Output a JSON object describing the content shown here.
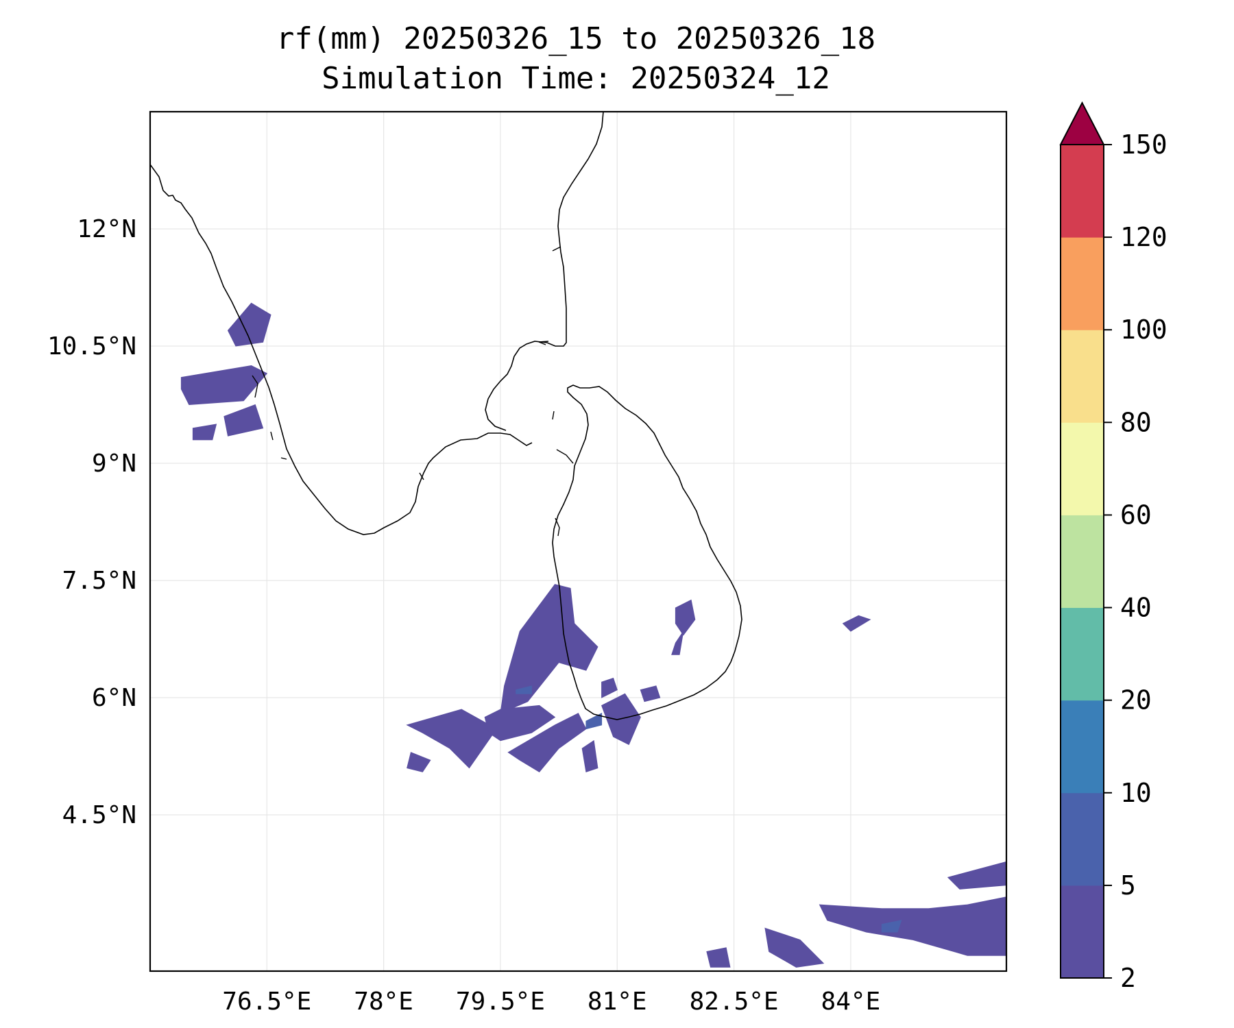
{
  "title": {
    "line1": "rf(mm) 20250326_15 to 20250326_18",
    "line2": "Simulation Time: 20250324_12"
  },
  "map": {
    "lon_range": [
      75.0,
      86.0
    ],
    "lat_range": [
      2.5,
      13.5
    ],
    "lon_ticks": [
      {
        "value": 76.5,
        "label": "76.5°E"
      },
      {
        "value": 78.0,
        "label": "78°E"
      },
      {
        "value": 79.5,
        "label": "79.5°E"
      },
      {
        "value": 81.0,
        "label": "81°E"
      },
      {
        "value": 82.5,
        "label": "82.5°E"
      },
      {
        "value": 84.0,
        "label": "84°E"
      }
    ],
    "lat_ticks": [
      {
        "value": 12.0,
        "label": "12°N"
      },
      {
        "value": 10.5,
        "label": "10.5°N"
      },
      {
        "value": 9.0,
        "label": "9°N"
      },
      {
        "value": 7.5,
        "label": "7.5°N"
      },
      {
        "value": 6.0,
        "label": "6°N"
      },
      {
        "value": 4.5,
        "label": "4.5°N"
      }
    ],
    "grid": true,
    "coastline_color": "#000000"
  },
  "colorbar": {
    "levels": [
      2,
      5,
      10,
      20,
      40,
      60,
      80,
      100,
      120,
      150
    ],
    "labels": [
      "2",
      "5",
      "10",
      "20",
      "40",
      "60",
      "80",
      "100",
      "120",
      "150"
    ],
    "colors": [
      "#5a4fa0",
      "#4a62ac",
      "#3a7fb8",
      "#62bca8",
      "#bde3a0",
      "#f3f8ac",
      "#f9df8c",
      "#f99f5e",
      "#d43d50"
    ],
    "extend_color": "#9d0142",
    "extend": "max"
  },
  "chart_data": {
    "type": "heatmap",
    "title": "rf(mm) 20250326_15 to 20250326_18\nSimulation Time: 20250324_12",
    "variable": "rf(mm)",
    "xlabel": "",
    "ylabel": "",
    "xlim": [
      75.0,
      86.0
    ],
    "ylim": [
      2.5,
      13.5
    ],
    "color_levels": [
      2,
      5,
      10,
      20,
      40,
      60,
      80,
      100,
      120,
      150
    ],
    "rain_areas": [
      {
        "name": "",
        "level": 2,
        "polygon": [
          [
            76.0,
            10.7
          ],
          [
            76.3,
            11.05
          ],
          [
            76.55,
            10.9
          ],
          [
            76.45,
            10.55
          ],
          [
            76.1,
            10.5
          ]
        ]
      },
      {
        "name": "",
        "level": 2,
        "polygon": [
          [
            75.4,
            10.1
          ],
          [
            76.3,
            10.25
          ],
          [
            76.5,
            10.15
          ],
          [
            76.2,
            9.8
          ],
          [
            75.5,
            9.75
          ],
          [
            75.4,
            9.95
          ]
        ]
      },
      {
        "name": "",
        "level": 2,
        "polygon": [
          [
            75.55,
            9.45
          ],
          [
            75.85,
            9.5
          ],
          [
            75.8,
            9.3
          ],
          [
            75.55,
            9.3
          ]
        ]
      },
      {
        "name": "",
        "level": 2,
        "polygon": [
          [
            75.95,
            9.6
          ],
          [
            76.35,
            9.75
          ],
          [
            76.45,
            9.45
          ],
          [
            76.0,
            9.35
          ]
        ]
      },
      {
        "name": "",
        "level": 2,
        "polygon": [
          [
            79.55,
            6.15
          ],
          [
            79.75,
            6.85
          ],
          [
            80.05,
            7.25
          ],
          [
            80.2,
            7.45
          ],
          [
            80.4,
            7.4
          ],
          [
            80.45,
            6.95
          ],
          [
            80.75,
            6.65
          ],
          [
            80.6,
            6.35
          ],
          [
            80.25,
            6.45
          ],
          [
            79.85,
            5.95
          ],
          [
            79.5,
            5.8
          ]
        ]
      },
      {
        "name": "",
        "level": 2,
        "polygon": [
          [
            80.8,
            6.2
          ],
          [
            80.95,
            6.25
          ],
          [
            81.0,
            6.1
          ],
          [
            80.8,
            6.0
          ]
        ]
      },
      {
        "name": "",
        "level": 2,
        "polygon": [
          [
            81.75,
            7.15
          ],
          [
            81.95,
            7.25
          ],
          [
            82.0,
            7.0
          ],
          [
            81.85,
            6.8
          ],
          [
            81.75,
            6.95
          ]
        ]
      },
      {
        "name": "",
        "level": 2,
        "polygon": [
          [
            81.75,
            6.7
          ],
          [
            81.85,
            6.85
          ],
          [
            81.8,
            6.55
          ],
          [
            81.7,
            6.55
          ]
        ]
      },
      {
        "name": "",
        "level": 2,
        "polygon": [
          [
            81.3,
            6.1
          ],
          [
            81.5,
            6.15
          ],
          [
            81.55,
            6.0
          ],
          [
            81.35,
            5.95
          ]
        ]
      },
      {
        "name": "",
        "level": 2,
        "polygon": [
          [
            80.8,
            5.9
          ],
          [
            81.1,
            6.05
          ],
          [
            81.3,
            5.75
          ],
          [
            81.15,
            5.4
          ],
          [
            80.95,
            5.5
          ]
        ]
      },
      {
        "name": "",
        "level": 2,
        "polygon": [
          [
            78.3,
            5.65
          ],
          [
            79.0,
            5.85
          ],
          [
            79.45,
            5.6
          ],
          [
            79.1,
            5.1
          ],
          [
            78.85,
            5.35
          ],
          [
            78.5,
            5.55
          ]
        ]
      },
      {
        "name": "",
        "level": 2,
        "polygon": [
          [
            78.35,
            5.3
          ],
          [
            78.6,
            5.2
          ],
          [
            78.5,
            5.05
          ],
          [
            78.3,
            5.1
          ]
        ]
      },
      {
        "name": "",
        "level": 2,
        "polygon": [
          [
            79.3,
            5.75
          ],
          [
            79.5,
            5.85
          ],
          [
            80.0,
            5.9
          ],
          [
            80.2,
            5.75
          ],
          [
            79.9,
            5.55
          ],
          [
            79.5,
            5.45
          ],
          [
            79.35,
            5.55
          ]
        ]
      },
      {
        "name": "",
        "level": 2,
        "polygon": [
          [
            79.6,
            5.3
          ],
          [
            80.2,
            5.65
          ],
          [
            80.5,
            5.8
          ],
          [
            80.6,
            5.6
          ],
          [
            80.25,
            5.35
          ],
          [
            80.0,
            5.05
          ],
          [
            79.75,
            5.2
          ]
        ]
      },
      {
        "name": "",
        "level": 2,
        "polygon": [
          [
            80.55,
            5.35
          ],
          [
            80.7,
            5.45
          ],
          [
            80.75,
            5.1
          ],
          [
            80.6,
            5.05
          ]
        ]
      },
      {
        "name": "",
        "level": 2,
        "polygon": [
          [
            82.9,
            3.05
          ],
          [
            83.35,
            2.9
          ],
          [
            83.65,
            2.6
          ],
          [
            83.3,
            2.55
          ],
          [
            82.95,
            2.75
          ]
        ]
      },
      {
        "name": "",
        "level": 2,
        "polygon": [
          [
            83.6,
            3.35
          ],
          [
            84.4,
            3.3
          ],
          [
            85.0,
            3.3
          ],
          [
            85.5,
            3.35
          ],
          [
            86.0,
            3.45
          ],
          [
            86.0,
            2.7
          ],
          [
            85.5,
            2.7
          ],
          [
            84.8,
            2.9
          ],
          [
            84.2,
            3.0
          ],
          [
            83.7,
            3.15
          ]
        ]
      },
      {
        "name": "",
        "level": 2,
        "polygon": [
          [
            85.25,
            3.7
          ],
          [
            86.0,
            3.9
          ],
          [
            86.0,
            3.6
          ],
          [
            85.4,
            3.55
          ]
        ]
      },
      {
        "name": "",
        "level": 2,
        "polygon": [
          [
            82.15,
            2.75
          ],
          [
            82.4,
            2.8
          ],
          [
            82.45,
            2.55
          ],
          [
            82.2,
            2.55
          ]
        ]
      },
      {
        "name": "",
        "level": 2,
        "polygon": [
          [
            83.9,
            6.95
          ],
          [
            84.1,
            7.05
          ],
          [
            84.25,
            7.0
          ],
          [
            84.0,
            6.85
          ]
        ]
      },
      {
        "name": "",
        "level": 5,
        "polygon": [
          [
            79.7,
            6.1
          ],
          [
            79.9,
            6.15
          ],
          [
            79.9,
            6.05
          ],
          [
            79.7,
            6.05
          ]
        ]
      },
      {
        "name": "",
        "level": 5,
        "polygon": [
          [
            80.6,
            5.7
          ],
          [
            80.8,
            5.8
          ],
          [
            80.8,
            5.65
          ],
          [
            80.6,
            5.6
          ]
        ]
      },
      {
        "name": "",
        "level": 5,
        "polygon": [
          [
            84.4,
            3.1
          ],
          [
            84.65,
            3.15
          ],
          [
            84.6,
            3.0
          ],
          [
            84.4,
            3.0
          ]
        ]
      }
    ]
  }
}
